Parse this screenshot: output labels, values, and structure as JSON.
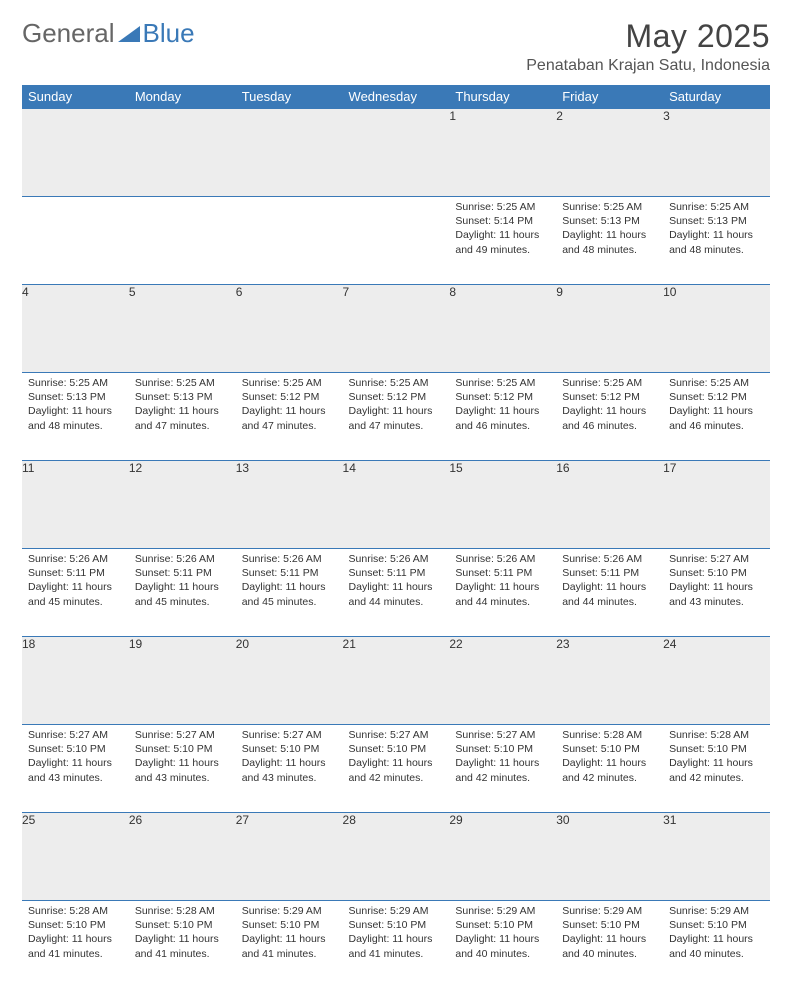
{
  "logo": {
    "text1": "General",
    "text2": "Blue",
    "tri_color": "#3a79b7"
  },
  "title": "May 2025",
  "location": "Penataban Krajan Satu, Indonesia",
  "colors": {
    "header_bg": "#3a79b7",
    "header_text": "#ffffff",
    "daynum_bg": "#ededed",
    "border": "#3a79b7",
    "body_text": "#333333",
    "page_bg": "#ffffff"
  },
  "typography": {
    "title_fontsize": 32,
    "location_fontsize": 16,
    "header_fontsize": 13,
    "cell_fontsize": 10.5
  },
  "weekdays": [
    "Sunday",
    "Monday",
    "Tuesday",
    "Wednesday",
    "Thursday",
    "Friday",
    "Saturday"
  ],
  "weeks": [
    [
      null,
      null,
      null,
      null,
      {
        "n": "1",
        "sr": "Sunrise: 5:25 AM",
        "ss": "Sunset: 5:14 PM",
        "dl": "Daylight: 11 hours and 49 minutes."
      },
      {
        "n": "2",
        "sr": "Sunrise: 5:25 AM",
        "ss": "Sunset: 5:13 PM",
        "dl": "Daylight: 11 hours and 48 minutes."
      },
      {
        "n": "3",
        "sr": "Sunrise: 5:25 AM",
        "ss": "Sunset: 5:13 PM",
        "dl": "Daylight: 11 hours and 48 minutes."
      }
    ],
    [
      {
        "n": "4",
        "sr": "Sunrise: 5:25 AM",
        "ss": "Sunset: 5:13 PM",
        "dl": "Daylight: 11 hours and 48 minutes."
      },
      {
        "n": "5",
        "sr": "Sunrise: 5:25 AM",
        "ss": "Sunset: 5:13 PM",
        "dl": "Daylight: 11 hours and 47 minutes."
      },
      {
        "n": "6",
        "sr": "Sunrise: 5:25 AM",
        "ss": "Sunset: 5:12 PM",
        "dl": "Daylight: 11 hours and 47 minutes."
      },
      {
        "n": "7",
        "sr": "Sunrise: 5:25 AM",
        "ss": "Sunset: 5:12 PM",
        "dl": "Daylight: 11 hours and 47 minutes."
      },
      {
        "n": "8",
        "sr": "Sunrise: 5:25 AM",
        "ss": "Sunset: 5:12 PM",
        "dl": "Daylight: 11 hours and 46 minutes."
      },
      {
        "n": "9",
        "sr": "Sunrise: 5:25 AM",
        "ss": "Sunset: 5:12 PM",
        "dl": "Daylight: 11 hours and 46 minutes."
      },
      {
        "n": "10",
        "sr": "Sunrise: 5:25 AM",
        "ss": "Sunset: 5:12 PM",
        "dl": "Daylight: 11 hours and 46 minutes."
      }
    ],
    [
      {
        "n": "11",
        "sr": "Sunrise: 5:26 AM",
        "ss": "Sunset: 5:11 PM",
        "dl": "Daylight: 11 hours and 45 minutes."
      },
      {
        "n": "12",
        "sr": "Sunrise: 5:26 AM",
        "ss": "Sunset: 5:11 PM",
        "dl": "Daylight: 11 hours and 45 minutes."
      },
      {
        "n": "13",
        "sr": "Sunrise: 5:26 AM",
        "ss": "Sunset: 5:11 PM",
        "dl": "Daylight: 11 hours and 45 minutes."
      },
      {
        "n": "14",
        "sr": "Sunrise: 5:26 AM",
        "ss": "Sunset: 5:11 PM",
        "dl": "Daylight: 11 hours and 44 minutes."
      },
      {
        "n": "15",
        "sr": "Sunrise: 5:26 AM",
        "ss": "Sunset: 5:11 PM",
        "dl": "Daylight: 11 hours and 44 minutes."
      },
      {
        "n": "16",
        "sr": "Sunrise: 5:26 AM",
        "ss": "Sunset: 5:11 PM",
        "dl": "Daylight: 11 hours and 44 minutes."
      },
      {
        "n": "17",
        "sr": "Sunrise: 5:27 AM",
        "ss": "Sunset: 5:10 PM",
        "dl": "Daylight: 11 hours and 43 minutes."
      }
    ],
    [
      {
        "n": "18",
        "sr": "Sunrise: 5:27 AM",
        "ss": "Sunset: 5:10 PM",
        "dl": "Daylight: 11 hours and 43 minutes."
      },
      {
        "n": "19",
        "sr": "Sunrise: 5:27 AM",
        "ss": "Sunset: 5:10 PM",
        "dl": "Daylight: 11 hours and 43 minutes."
      },
      {
        "n": "20",
        "sr": "Sunrise: 5:27 AM",
        "ss": "Sunset: 5:10 PM",
        "dl": "Daylight: 11 hours and 43 minutes."
      },
      {
        "n": "21",
        "sr": "Sunrise: 5:27 AM",
        "ss": "Sunset: 5:10 PM",
        "dl": "Daylight: 11 hours and 42 minutes."
      },
      {
        "n": "22",
        "sr": "Sunrise: 5:27 AM",
        "ss": "Sunset: 5:10 PM",
        "dl": "Daylight: 11 hours and 42 minutes."
      },
      {
        "n": "23",
        "sr": "Sunrise: 5:28 AM",
        "ss": "Sunset: 5:10 PM",
        "dl": "Daylight: 11 hours and 42 minutes."
      },
      {
        "n": "24",
        "sr": "Sunrise: 5:28 AM",
        "ss": "Sunset: 5:10 PM",
        "dl": "Daylight: 11 hours and 42 minutes."
      }
    ],
    [
      {
        "n": "25",
        "sr": "Sunrise: 5:28 AM",
        "ss": "Sunset: 5:10 PM",
        "dl": "Daylight: 11 hours and 41 minutes."
      },
      {
        "n": "26",
        "sr": "Sunrise: 5:28 AM",
        "ss": "Sunset: 5:10 PM",
        "dl": "Daylight: 11 hours and 41 minutes."
      },
      {
        "n": "27",
        "sr": "Sunrise: 5:29 AM",
        "ss": "Sunset: 5:10 PM",
        "dl": "Daylight: 11 hours and 41 minutes."
      },
      {
        "n": "28",
        "sr": "Sunrise: 5:29 AM",
        "ss": "Sunset: 5:10 PM",
        "dl": "Daylight: 11 hours and 41 minutes."
      },
      {
        "n": "29",
        "sr": "Sunrise: 5:29 AM",
        "ss": "Sunset: 5:10 PM",
        "dl": "Daylight: 11 hours and 40 minutes."
      },
      {
        "n": "30",
        "sr": "Sunrise: 5:29 AM",
        "ss": "Sunset: 5:10 PM",
        "dl": "Daylight: 11 hours and 40 minutes."
      },
      {
        "n": "31",
        "sr": "Sunrise: 5:29 AM",
        "ss": "Sunset: 5:10 PM",
        "dl": "Daylight: 11 hours and 40 minutes."
      }
    ]
  ]
}
